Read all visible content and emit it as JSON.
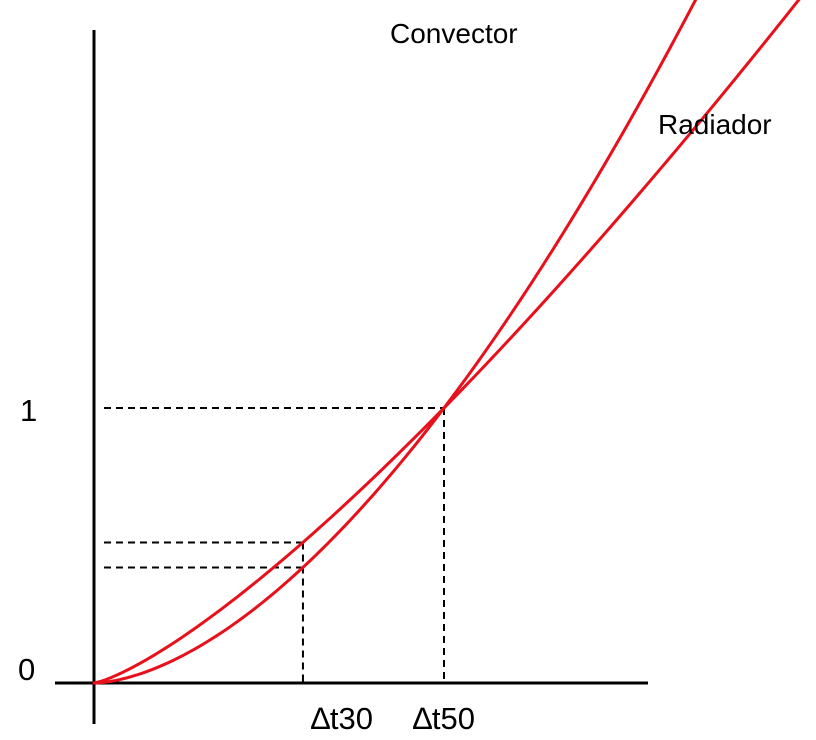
{
  "chart_data": {
    "type": "line",
    "title": "",
    "xlabel": "",
    "ylabel": "",
    "grid": false,
    "legend": "inline labels at line ends",
    "line_color": "#e8101a",
    "axis_color": "#000000",
    "x_ticks": [
      {
        "value": 0.597,
        "label": "∆t30"
      },
      {
        "value": 1.0,
        "label": "∆t50"
      }
    ],
    "y_ticks": [
      {
        "value": 0,
        "label": "0"
      },
      {
        "value": 1,
        "label": "1"
      }
    ],
    "series": [
      {
        "name": "Convector",
        "exponent": 1.68,
        "x": [
          0,
          0.1,
          0.2,
          0.3,
          0.4,
          0.5,
          0.597,
          0.7,
          0.8,
          0.9,
          1.0,
          1.1,
          1.2,
          1.3,
          1.4,
          1.5,
          1.6,
          1.7,
          1.8,
          1.81
        ],
        "y": [
          0,
          0.021,
          0.067,
          0.132,
          0.214,
          0.312,
          0.42,
          0.549,
          0.688,
          0.838,
          1.0,
          1.174,
          1.359,
          1.554,
          1.759,
          1.975,
          2.201,
          2.438,
          2.684,
          2.71
        ]
      },
      {
        "name": "Radiador",
        "exponent": 1.3,
        "x": [
          0,
          0.1,
          0.2,
          0.3,
          0.4,
          0.5,
          0.597,
          0.7,
          0.8,
          0.9,
          1.0,
          1.1,
          1.2,
          1.3,
          1.4,
          1.5,
          1.6,
          1.7,
          1.8,
          1.9,
          2.0,
          2.04
        ],
        "y": [
          0,
          0.05,
          0.123,
          0.209,
          0.304,
          0.406,
          0.511,
          0.629,
          0.748,
          0.872,
          1.0,
          1.132,
          1.268,
          1.406,
          1.549,
          1.694,
          1.842,
          1.993,
          2.147,
          2.303,
          2.462,
          2.527
        ]
      }
    ],
    "guides": [
      {
        "type": "horizontal",
        "y": 1.0,
        "x_to": 1.0
      },
      {
        "type": "vertical",
        "x": 1.0,
        "y_to": 1.0
      },
      {
        "type": "horizontal",
        "y": 0.511,
        "x_to": 0.597
      },
      {
        "type": "horizontal",
        "y": 0.42,
        "x_to": 0.597
      },
      {
        "type": "vertical",
        "x": 0.597,
        "y_to": 0.511
      }
    ]
  }
}
